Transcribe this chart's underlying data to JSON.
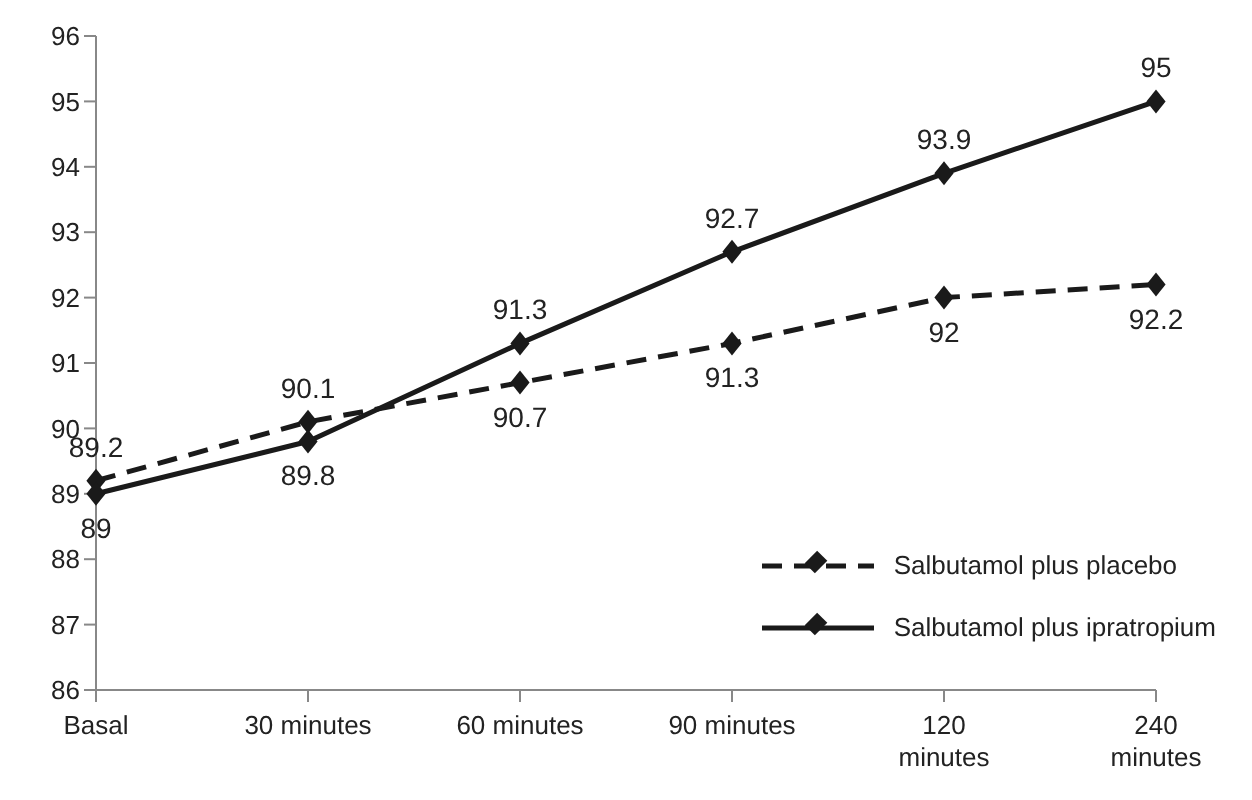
{
  "chart_data": {
    "type": "line",
    "categories": [
      "Basal",
      "30 minutes",
      "60 minutes",
      "90 minutes",
      "120 minutes",
      "240 minutes"
    ],
    "series": [
      {
        "name": "Salbutamol plus placebo",
        "color": "#1a1a1a",
        "values": [
          89.2,
          90.1,
          90.7,
          91.3,
          92,
          92.2
        ],
        "line_style": "dashed"
      },
      {
        "name": "Salbutamol plus ipratropium",
        "color": "#1a1a1a",
        "values": [
          89,
          89.8,
          91.3,
          92.7,
          93.9,
          95
        ],
        "line_style": "solid"
      }
    ],
    "ylim": [
      86,
      96
    ],
    "yticks": [
      86,
      87,
      88,
      89,
      90,
      91,
      92,
      93,
      94,
      95,
      96
    ],
    "grid": false,
    "legend": "bottom right",
    "marker": "diamond",
    "data_labels": true
  }
}
